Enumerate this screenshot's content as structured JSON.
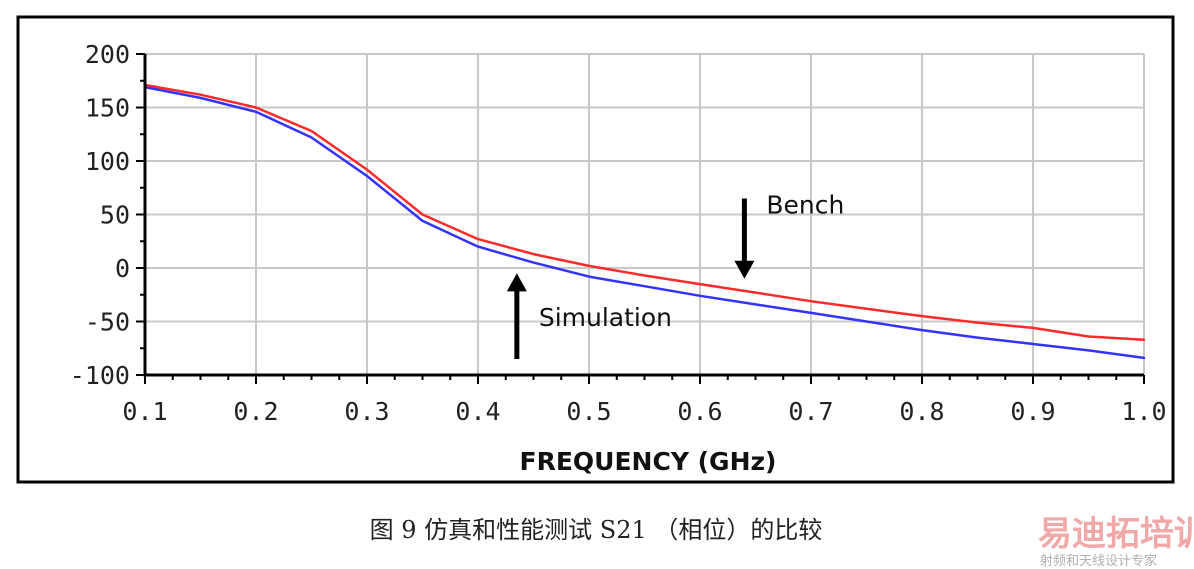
{
  "caption": "图 9  仿真和性能测试 S21 （相位）的比较",
  "watermark": {
    "main": "易迪拓培训",
    "sub": "射频和天线设计专家"
  },
  "chart_data": {
    "type": "line",
    "xlabel": "FREQUENCY (GHz)",
    "ylabel": "",
    "xlim": [
      0.1,
      1.0
    ],
    "ylim": [
      -100,
      200
    ],
    "xticks": [
      0.1,
      0.2,
      0.3,
      0.4,
      0.5,
      0.6,
      0.7,
      0.8,
      0.9,
      1.0
    ],
    "xtick_labels": [
      "0.1",
      "0.2",
      "0.3",
      "0.4",
      "0.5",
      "0.6",
      "0.7",
      "0.8",
      "0.9",
      "1.0"
    ],
    "yticks": [
      -100,
      -50,
      0,
      50,
      100,
      150,
      200
    ],
    "ytick_labels": [
      "-100",
      "-50",
      "0",
      "50",
      "100",
      "150",
      "200"
    ],
    "grid": true,
    "series": [
      {
        "name": "Bench",
        "color": "#ff2a2a",
        "x": [
          0.1,
          0.15,
          0.2,
          0.25,
          0.3,
          0.35,
          0.4,
          0.45,
          0.5,
          0.55,
          0.6,
          0.65,
          0.7,
          0.75,
          0.8,
          0.85,
          0.9,
          0.95,
          1.0
        ],
        "y": [
          171,
          162,
          150,
          128,
          92,
          50,
          27,
          13,
          2,
          -7,
          -15,
          -23,
          -31,
          -38,
          -45,
          -51,
          -56,
          -64,
          -67
        ]
      },
      {
        "name": "Simulation",
        "color": "#3333ff",
        "x": [
          0.1,
          0.15,
          0.2,
          0.25,
          0.3,
          0.35,
          0.4,
          0.45,
          0.5,
          0.55,
          0.6,
          0.65,
          0.7,
          0.75,
          0.8,
          0.85,
          0.9,
          0.95,
          1.0
        ],
        "y": [
          169,
          159,
          146,
          122,
          86,
          44,
          20,
          5,
          -8,
          -17,
          -26,
          -34,
          -42,
          -50,
          -58,
          -65,
          -71,
          -77,
          -84
        ]
      }
    ],
    "annotations": [
      {
        "text": "Bench",
        "arrow": "down",
        "at_x": 0.64,
        "from_y": 65,
        "to_y": -10
      },
      {
        "text": "Simulation",
        "arrow": "up",
        "at_x": 0.435,
        "from_y": -85,
        "to_y": -5
      }
    ]
  }
}
